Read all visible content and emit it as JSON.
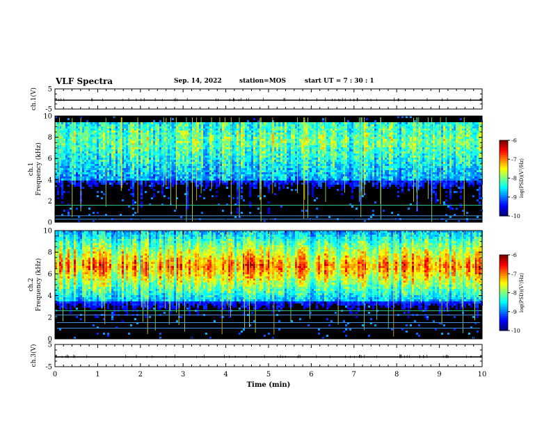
{
  "header": {
    "title": "VLF Spectra",
    "date": "Sep. 14, 2022",
    "station": "station=MOS",
    "start": "start  UT  =   7 : 30 : 1"
  },
  "chart_data": [
    {
      "type": "line",
      "ylabel": "ch.1(V)",
      "ylim": [
        -5,
        5
      ],
      "yticks": [
        "5",
        "-5"
      ],
      "series": [
        {
          "values": [
            0,
            0
          ]
        }
      ]
    },
    {
      "type": "heatmap",
      "ylabel_lines": [
        "ch.1",
        "Frequency (kHz)"
      ],
      "ylim": [
        0,
        10
      ],
      "yticks": [
        "0",
        "2",
        "4",
        "6",
        "8",
        "10"
      ],
      "xlim": [
        0,
        10
      ],
      "colorbar": {
        "label": "log(PSD)(V²/Hz)",
        "ticks": [
          "-6",
          "-7",
          "-8",
          "-9",
          "-10"
        ],
        "range": [
          -10,
          -6
        ]
      },
      "band_khz": [
        4,
        9.5
      ],
      "lines_khz": [
        1.6,
        0.6,
        0.3
      ]
    },
    {
      "type": "heatmap",
      "ylabel_lines": [
        "ch.2",
        "Frequency (kHz)"
      ],
      "ylim": [
        0,
        10
      ],
      "yticks": [
        "0",
        "2",
        "4",
        "6",
        "8",
        "10"
      ],
      "xlim": [
        0,
        10
      ],
      "colorbar": {
        "label": "log(PSD)(V²/Hz)",
        "ticks": [
          "-6",
          "-7",
          "-8",
          "-9",
          "-10"
        ],
        "range": [
          -10,
          -6
        ]
      },
      "band_khz": [
        3.5,
        10
      ],
      "peak_khz": 6.8,
      "lines_khz": [
        2.6,
        2.2,
        1.5,
        1.0
      ]
    },
    {
      "type": "line",
      "ylabel": "ch.3(V)",
      "ylim": [
        -5,
        5
      ],
      "yticks": [
        "5",
        "-5"
      ],
      "xlabel": "Time  (min)",
      "xticks": [
        "0",
        "1",
        "2",
        "3",
        "4",
        "5",
        "6",
        "7",
        "8",
        "9",
        "10"
      ],
      "xlim": [
        0,
        10
      ],
      "series": [
        {
          "values": [
            0,
            0
          ]
        }
      ]
    }
  ]
}
